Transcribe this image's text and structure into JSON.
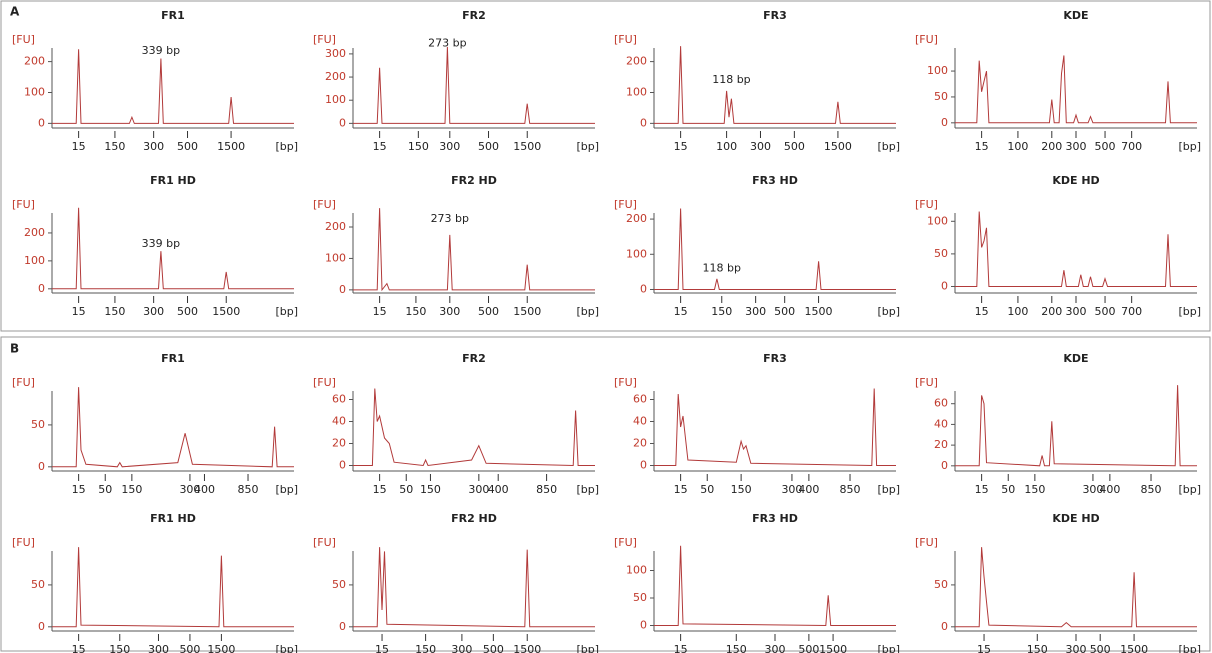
{
  "panel_labels": [
    "A",
    "B"
  ],
  "chart_data": [
    {
      "type": "line",
      "title": "FR1",
      "y_label": "[FU]",
      "x_label": "[bp]",
      "color": "#b23a3a",
      "xlim": [
        0,
        100
      ],
      "ylim": [
        -15,
        270
      ],
      "yticks": [
        0,
        100,
        200
      ],
      "xticks": [
        {
          "value": 11,
          "label": "15"
        },
        {
          "value": 26,
          "label": "150"
        },
        {
          "value": 42,
          "label": "300"
        },
        {
          "value": 56,
          "label": "500"
        },
        {
          "value": 74,
          "label": "1500"
        }
      ],
      "x": [
        0,
        10,
        11,
        12,
        32,
        33,
        34,
        44,
        45,
        46,
        73,
        74,
        75,
        100
      ],
      "values": [
        0,
        0,
        240,
        0,
        0,
        20,
        0,
        0,
        210,
        0,
        0,
        85,
        0,
        0
      ],
      "annotation": {
        "text": "339 bp",
        "x": 45,
        "y": 235
      }
    },
    {
      "type": "line",
      "title": "FR2",
      "y_label": "[FU]",
      "x_label": "[bp]",
      "color": "#b23a3a",
      "xlim": [
        0,
        100
      ],
      "ylim": [
        -20,
        360
      ],
      "yticks": [
        0,
        100,
        200,
        300
      ],
      "xticks": [
        {
          "value": 11,
          "label": "15"
        },
        {
          "value": 27,
          "label": "150"
        },
        {
          "value": 40,
          "label": "300"
        },
        {
          "value": 56,
          "label": "500"
        },
        {
          "value": 72,
          "label": "1500"
        }
      ],
      "x": [
        0,
        10,
        11,
        12,
        38,
        39,
        40,
        71,
        72,
        73,
        100
      ],
      "values": [
        0,
        0,
        240,
        0,
        0,
        330,
        0,
        0,
        85,
        0,
        0
      ],
      "annotation": {
        "text": "273 bp",
        "x": 39,
        "y": 345
      }
    },
    {
      "type": "line",
      "title": "FR3",
      "y_label": "[FU]",
      "x_label": "[bp]",
      "color": "#b23a3a",
      "xlim": [
        0,
        100
      ],
      "ylim": [
        -15,
        270
      ],
      "yticks": [
        0,
        100,
        200
      ],
      "xticks": [
        {
          "value": 11,
          "label": "15"
        },
        {
          "value": 30,
          "label": "100"
        },
        {
          "value": 44,
          "label": "300"
        },
        {
          "value": 58,
          "label": "500"
        },
        {
          "value": 76,
          "label": "1500"
        }
      ],
      "x": [
        0,
        10,
        11,
        12,
        29,
        30,
        31,
        32,
        33,
        75,
        76,
        77,
        100
      ],
      "values": [
        0,
        0,
        250,
        0,
        0,
        105,
        20,
        80,
        0,
        0,
        70,
        0,
        0
      ],
      "annotation": {
        "text": "118 bp",
        "x": 32,
        "y": 140
      }
    },
    {
      "type": "line",
      "title": "KDE",
      "y_label": "[FU]",
      "x_label": "[bp]",
      "color": "#b23a3a",
      "xlim": [
        0,
        100
      ],
      "ylim": [
        -10,
        160
      ],
      "yticks": [
        0,
        50,
        100
      ],
      "xticks": [
        {
          "value": 11,
          "label": "15"
        },
        {
          "value": 26,
          "label": "100"
        },
        {
          "value": 40,
          "label": "200"
        },
        {
          "value": 50,
          "label": "300"
        },
        {
          "value": 62,
          "label": "500"
        },
        {
          "value": 73,
          "label": "700"
        }
      ],
      "x": [
        0,
        9,
        10,
        11,
        12,
        13,
        14,
        39,
        40,
        41,
        43,
        44,
        45,
        46,
        49,
        50,
        51,
        55,
        56,
        57,
        87,
        88,
        89,
        100
      ],
      "values": [
        0,
        0,
        120,
        60,
        80,
        100,
        0,
        0,
        45,
        0,
        0,
        95,
        130,
        0,
        0,
        15,
        0,
        0,
        12,
        0,
        0,
        80,
        0,
        0
      ]
    },
    {
      "type": "line",
      "title": "FR1 HD",
      "y_label": "[FU]",
      "x_label": "[bp]",
      "color": "#b23a3a",
      "xlim": [
        0,
        100
      ],
      "ylim": [
        -15,
        300
      ],
      "yticks": [
        0,
        100,
        200
      ],
      "xticks": [
        {
          "value": 11,
          "label": "15"
        },
        {
          "value": 26,
          "label": "150"
        },
        {
          "value": 42,
          "label": "300"
        },
        {
          "value": 56,
          "label": "500"
        },
        {
          "value": 72,
          "label": "1500"
        }
      ],
      "x": [
        0,
        10,
        11,
        12,
        44,
        45,
        46,
        71,
        72,
        73,
        100
      ],
      "values": [
        0,
        0,
        290,
        0,
        0,
        135,
        0,
        0,
        60,
        0,
        0
      ],
      "annotation": {
        "text": "339 bp",
        "x": 45,
        "y": 160
      }
    },
    {
      "type": "line",
      "title": "FR2 HD",
      "y_label": "[FU]",
      "x_label": "[bp]",
      "color": "#b23a3a",
      "xlim": [
        0,
        100
      ],
      "ylim": [
        -10,
        270
      ],
      "yticks": [
        0,
        100,
        200
      ],
      "xticks": [
        {
          "value": 11,
          "label": "15"
        },
        {
          "value": 26,
          "label": "150"
        },
        {
          "value": 40,
          "label": "300"
        },
        {
          "value": 56,
          "label": "500"
        },
        {
          "value": 72,
          "label": "1500"
        }
      ],
      "x": [
        0,
        10,
        11,
        12,
        14,
        15,
        39,
        40,
        41,
        71,
        72,
        73,
        100
      ],
      "values": [
        0,
        0,
        260,
        0,
        20,
        0,
        0,
        175,
        0,
        0,
        80,
        0,
        0
      ],
      "annotation": {
        "text": "273 bp",
        "x": 40,
        "y": 225
      }
    },
    {
      "type": "line",
      "title": "FR3 HD",
      "y_label": "[FU]",
      "x_label": "[bp]",
      "color": "#b23a3a",
      "xlim": [
        0,
        100
      ],
      "ylim": [
        -10,
        240
      ],
      "yticks": [
        0,
        100,
        200
      ],
      "xticks": [
        {
          "value": 11,
          "label": "15"
        },
        {
          "value": 28,
          "label": "150"
        },
        {
          "value": 42,
          "label": "300"
        },
        {
          "value": 54,
          "label": "500"
        },
        {
          "value": 68,
          "label": "1500"
        }
      ],
      "x": [
        0,
        10,
        11,
        12,
        25,
        26,
        27,
        67,
        68,
        69,
        100
      ],
      "values": [
        0,
        0,
        230,
        0,
        0,
        30,
        0,
        0,
        80,
        0,
        0
      ],
      "annotation": {
        "text": "118 bp",
        "x": 28,
        "y": 60
      }
    },
    {
      "type": "line",
      "title": "KDE HD",
      "y_label": "[FU]",
      "x_label": "[bp]",
      "color": "#b23a3a",
      "xlim": [
        0,
        100
      ],
      "ylim": [
        -10,
        125
      ],
      "yticks": [
        0,
        50,
        100
      ],
      "xticks": [
        {
          "value": 11,
          "label": "15"
        },
        {
          "value": 26,
          "label": "100"
        },
        {
          "value": 40,
          "label": "200"
        },
        {
          "value": 50,
          "label": "300"
        },
        {
          "value": 62,
          "label": "500"
        },
        {
          "value": 73,
          "label": "700"
        }
      ],
      "x": [
        0,
        9,
        10,
        11,
        12,
        13,
        14,
        44,
        45,
        46,
        51,
        52,
        53,
        55,
        56,
        57,
        61,
        62,
        63,
        87,
        88,
        89,
        100
      ],
      "values": [
        0,
        0,
        115,
        60,
        70,
        90,
        0,
        0,
        25,
        0,
        0,
        18,
        0,
        0,
        15,
        0,
        0,
        12,
        0,
        0,
        80,
        0,
        0
      ]
    },
    {
      "type": "line",
      "title": "FR1",
      "y_label": "[FU]",
      "x_label": "[bp]",
      "color": "#b23a3a",
      "xlim": [
        0,
        100
      ],
      "ylim": [
        -5,
        100
      ],
      "yticks": [
        0,
        50
      ],
      "xticks": [
        {
          "value": 11,
          "label": "15"
        },
        {
          "value": 22,
          "label": "50"
        },
        {
          "value": 33,
          "label": "150"
        },
        {
          "value": 57,
          "label": "300"
        },
        {
          "value": 63,
          "label": "400"
        },
        {
          "value": 81,
          "label": "850"
        }
      ],
      "x": [
        0,
        10,
        11,
        12,
        14,
        27,
        28,
        29,
        52,
        55,
        58,
        91,
        92,
        93,
        100
      ],
      "values": [
        0,
        0,
        95,
        20,
        3,
        0,
        5,
        0,
        5,
        40,
        3,
        0,
        48,
        0,
        0
      ]
    },
    {
      "type": "line",
      "title": "FR2",
      "y_label": "[FU]",
      "x_label": "[bp]",
      "color": "#b23a3a",
      "xlim": [
        0,
        100
      ],
      "ylim": [
        -5,
        75
      ],
      "yticks": [
        0,
        20,
        40,
        60
      ],
      "xticks": [
        {
          "value": 11,
          "label": "15"
        },
        {
          "value": 22,
          "label": "50"
        },
        {
          "value": 32,
          "label": "150"
        },
        {
          "value": 52,
          "label": "300"
        },
        {
          "value": 60,
          "label": "400"
        },
        {
          "value": 80,
          "label": "850"
        }
      ],
      "x": [
        0,
        8,
        9,
        10,
        11,
        13,
        15,
        17,
        29,
        30,
        31,
        49,
        52,
        55,
        91,
        92,
        93,
        100
      ],
      "values": [
        0,
        0,
        70,
        40,
        45,
        25,
        20,
        3,
        0,
        5,
        0,
        5,
        18,
        2,
        0,
        50,
        0,
        0
      ]
    },
    {
      "type": "line",
      "title": "FR3",
      "y_label": "[FU]",
      "x_label": "[bp]",
      "color": "#b23a3a",
      "xlim": [
        0,
        100
      ],
      "ylim": [
        -5,
        75
      ],
      "yticks": [
        0,
        20,
        40,
        60
      ],
      "xticks": [
        {
          "value": 11,
          "label": "15"
        },
        {
          "value": 22,
          "label": "50"
        },
        {
          "value": 36,
          "label": "150"
        },
        {
          "value": 57,
          "label": "300"
        },
        {
          "value": 64,
          "label": "400"
        },
        {
          "value": 81,
          "label": "850"
        }
      ],
      "x": [
        0,
        9,
        10,
        11,
        12,
        14,
        34,
        36,
        37,
        38,
        40,
        90,
        91,
        92,
        100
      ],
      "values": [
        0,
        0,
        65,
        35,
        45,
        5,
        3,
        22,
        15,
        18,
        2,
        0,
        70,
        0,
        0
      ]
    },
    {
      "type": "line",
      "title": "KDE",
      "y_label": "[FU]",
      "x_label": "[bp]",
      "color": "#b23a3a",
      "xlim": [
        0,
        100
      ],
      "ylim": [
        -5,
        80
      ],
      "yticks": [
        0,
        20,
        40,
        60
      ],
      "xticks": [
        {
          "value": 11,
          "label": "15"
        },
        {
          "value": 22,
          "label": "50"
        },
        {
          "value": 33,
          "label": "150"
        },
        {
          "value": 57,
          "label": "300"
        },
        {
          "value": 64,
          "label": "400"
        },
        {
          "value": 81,
          "label": "850"
        }
      ],
      "x": [
        0,
        10,
        11,
        12,
        13,
        35,
        36,
        37,
        39,
        40,
        41,
        91,
        92,
        93,
        100
      ],
      "values": [
        0,
        0,
        68,
        60,
        3,
        0,
        10,
        0,
        0,
        43,
        2,
        0,
        78,
        0,
        0
      ]
    },
    {
      "type": "line",
      "title": "FR1 HD",
      "y_label": "[FU]",
      "x_label": "[bp]",
      "color": "#b23a3a",
      "xlim": [
        0,
        100
      ],
      "ylim": [
        -5,
        100
      ],
      "yticks": [
        0,
        50
      ],
      "xticks": [
        {
          "value": 11,
          "label": "15"
        },
        {
          "value": 28,
          "label": "150"
        },
        {
          "value": 44,
          "label": "300"
        },
        {
          "value": 57,
          "label": "500"
        },
        {
          "value": 70,
          "label": "1500"
        }
      ],
      "x": [
        0,
        10,
        11,
        12,
        69,
        70,
        71,
        100
      ],
      "values": [
        0,
        0,
        95,
        2,
        0,
        85,
        0,
        0
      ]
    },
    {
      "type": "line",
      "title": "FR2 HD",
      "y_label": "[FU]",
      "x_label": "[bp]",
      "color": "#b23a3a",
      "xlim": [
        0,
        100
      ],
      "ylim": [
        -5,
        100
      ],
      "yticks": [
        0,
        50
      ],
      "xticks": [
        {
          "value": 12,
          "label": "15"
        },
        {
          "value": 30,
          "label": "150"
        },
        {
          "value": 45,
          "label": "300"
        },
        {
          "value": 58,
          "label": "500"
        },
        {
          "value": 72,
          "label": "1500"
        }
      ],
      "x": [
        0,
        10,
        11,
        12,
        13,
        14,
        71,
        72,
        73,
        100
      ],
      "values": [
        0,
        0,
        95,
        20,
        90,
        3,
        0,
        92,
        0,
        0
      ]
    },
    {
      "type": "line",
      "title": "FR3 HD",
      "y_label": "[FU]",
      "x_label": "[bp]",
      "color": "#b23a3a",
      "xlim": [
        0,
        100
      ],
      "ylim": [
        -10,
        150
      ],
      "yticks": [
        0,
        50,
        100
      ],
      "xticks": [
        {
          "value": 11,
          "label": "15"
        },
        {
          "value": 34,
          "label": "150"
        },
        {
          "value": 50,
          "label": "300"
        },
        {
          "value": 64,
          "label": "500"
        },
        {
          "value": 74,
          "label": "1500"
        }
      ],
      "x": [
        0,
        10,
        11,
        12,
        71,
        72,
        73,
        100
      ],
      "values": [
        0,
        0,
        145,
        3,
        0,
        55,
        0,
        0
      ]
    },
    {
      "type": "line",
      "title": "KDE HD",
      "y_label": "[FU]",
      "x_label": "[bp]",
      "color": "#b23a3a",
      "xlim": [
        0,
        100
      ],
      "ylim": [
        -5,
        100
      ],
      "yticks": [
        0,
        50
      ],
      "xticks": [
        {
          "value": 12,
          "label": "15"
        },
        {
          "value": 34,
          "label": "150"
        },
        {
          "value": 50,
          "label": "300"
        },
        {
          "value": 60,
          "label": "500"
        },
        {
          "value": 74,
          "label": "1500"
        }
      ],
      "x": [
        0,
        10,
        11,
        12,
        13,
        14,
        44,
        46,
        48,
        73,
        74,
        75,
        100
      ],
      "values": [
        0,
        0,
        95,
        60,
        30,
        2,
        0,
        5,
        0,
        0,
        65,
        0,
        0
      ]
    }
  ]
}
